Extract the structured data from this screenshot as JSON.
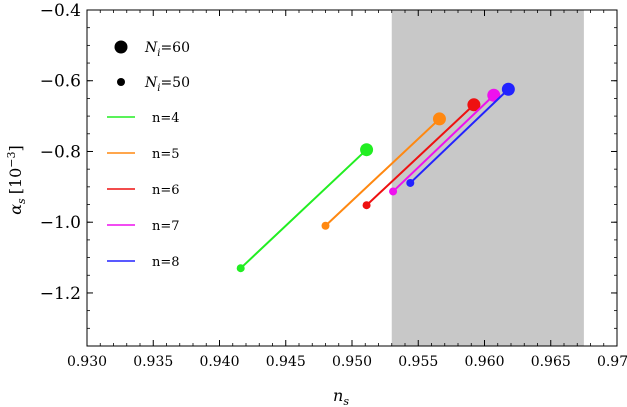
{
  "chart_data": {
    "type": "line",
    "xlabel": "n",
    "xlabel_sub": "s",
    "ylabel": "α",
    "ylabel_sub": "s",
    "ylabel_unit_pre": "[10",
    "ylabel_unit_exp": "−3",
    "ylabel_unit_post": "]",
    "xlim": [
      0.93,
      0.97
    ],
    "ylim": [
      -1.35,
      -0.4
    ],
    "xticks": [
      0.93,
      0.935,
      0.94,
      0.945,
      0.95,
      0.955,
      0.96,
      0.965,
      0.97
    ],
    "xtick_labels": [
      "0.930",
      "0.935",
      "0.940",
      "0.945",
      "0.950",
      "0.955",
      "0.960",
      "0.965",
      "0.970"
    ],
    "yticks": [
      -0.4,
      -0.6,
      -0.8,
      -1.0,
      -1.2
    ],
    "ytick_labels": [
      "−0.4",
      "−0.6",
      "−0.8",
      "−1.0",
      "−1.2"
    ],
    "shaded_band": {
      "x": [
        0.953,
        0.9675
      ],
      "color": "#c8c8c8"
    },
    "marker_legend": [
      {
        "label_base": "N",
        "label_sub": "i",
        "label_rest": "=60",
        "size": "large"
      },
      {
        "label_base": "N",
        "label_sub": "i",
        "label_rest": "=50",
        "size": "small"
      }
    ],
    "legend_position": "top-left",
    "series": [
      {
        "name": "n=4",
        "color": "#22ee22",
        "x": [
          0.9416,
          0.9511
        ],
        "y": [
          -1.13,
          -0.795
        ]
      },
      {
        "name": "n=5",
        "color": "#ff8811",
        "x": [
          0.948,
          0.9566
        ],
        "y": [
          -1.01,
          -0.708
        ]
      },
      {
        "name": "n=6",
        "color": "#ee1111",
        "x": [
          0.9511,
          0.9592
        ],
        "y": [
          -0.952,
          -0.668
        ]
      },
      {
        "name": "n=7",
        "color": "#ee11ee",
        "x": [
          0.9531,
          0.9607
        ],
        "y": [
          -0.913,
          -0.641
        ]
      },
      {
        "name": "n=8",
        "color": "#2222ff",
        "x": [
          0.9544,
          0.9618
        ],
        "y": [
          -0.889,
          -0.624
        ]
      }
    ]
  }
}
